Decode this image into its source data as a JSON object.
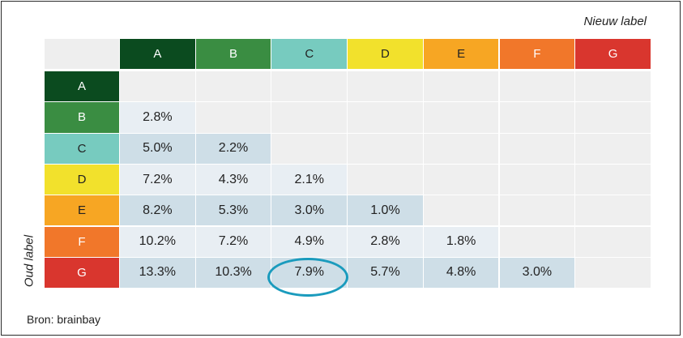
{
  "header_label": "Nieuw label",
  "side_label": "Oud label",
  "source": "Bron: brainbay",
  "label_colors": {
    "A": "#0b4b1f",
    "B": "#3a8d42",
    "C": "#77cbbf",
    "D": "#f2e12c",
    "E": "#f7a623",
    "F": "#f1772a",
    "G": "#d9362e"
  },
  "label_text_colors": {
    "A": "#ffffff",
    "B": "#ffffff",
    "C": "#222222",
    "D": "#222222",
    "E": "#222222",
    "F": "#ffffff",
    "G": "#ffffff"
  },
  "highlight_ring_color": "#1a9bbd",
  "chart_data": {
    "type": "table",
    "columns": [
      "A",
      "B",
      "C",
      "D",
      "E",
      "F",
      "G"
    ],
    "rows": [
      {
        "label": "A",
        "values": [
          null,
          null,
          null,
          null,
          null,
          null,
          null
        ]
      },
      {
        "label": "B",
        "values": [
          "2.8%",
          null,
          null,
          null,
          null,
          null,
          null
        ]
      },
      {
        "label": "C",
        "values": [
          "5.0%",
          "2.2%",
          null,
          null,
          null,
          null,
          null
        ]
      },
      {
        "label": "D",
        "values": [
          "7.2%",
          "4.3%",
          "2.1%",
          null,
          null,
          null,
          null
        ]
      },
      {
        "label": "E",
        "values": [
          "8.2%",
          "5.3%",
          "3.0%",
          "1.0%",
          null,
          null,
          null
        ]
      },
      {
        "label": "F",
        "values": [
          "10.2%",
          "7.2%",
          "4.9%",
          "2.8%",
          "1.8%",
          null,
          null
        ]
      },
      {
        "label": "G",
        "values": [
          "13.3%",
          "10.3%",
          "7.9%",
          "5.7%",
          "4.8%",
          "3.0%",
          null
        ]
      }
    ],
    "highlighted_cell": {
      "row": "G",
      "column": "C"
    }
  }
}
